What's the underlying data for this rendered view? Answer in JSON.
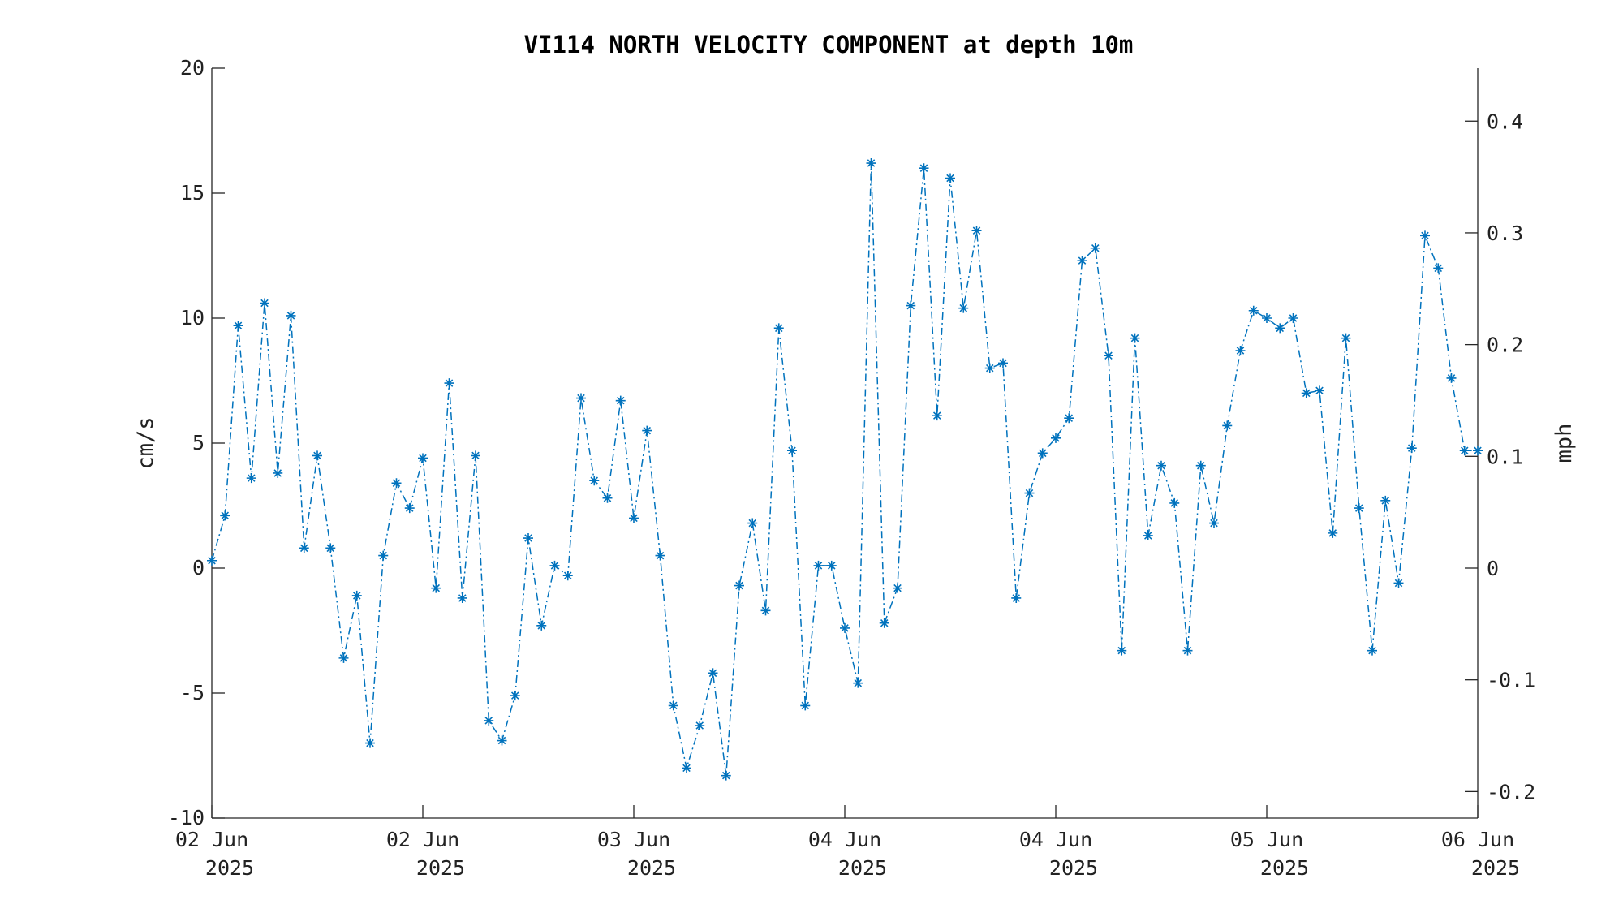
{
  "chart_data": {
    "type": "line",
    "title": "VI114 NORTH VELOCITY COMPONENT at depth 10m",
    "ylabel": "cm/s",
    "y2label": "mph",
    "ylim": [
      -10,
      20
    ],
    "y2lim": [
      -0.2237,
      0.4474
    ],
    "yticks": [
      -10,
      -5,
      0,
      5,
      10,
      15,
      20
    ],
    "y2ticks": [
      -0.2,
      -0.1,
      0,
      0.1,
      0.2,
      0.3,
      0.4
    ],
    "y2ticklabels": [
      "-0.2",
      "-0.1",
      "0",
      "0.1",
      "0.2",
      "0.3",
      "0.4"
    ],
    "xlim": [
      "2025-06-02T00:00",
      "2025-06-06T00:00"
    ],
    "xticks": [
      {
        "t": "2025-06-02T00:00",
        "line1": "02 Jun",
        "line2": "2025"
      },
      {
        "t": "2025-06-02T16:00",
        "line1": "02 Jun",
        "line2": "2025"
      },
      {
        "t": "2025-06-03T08:00",
        "line1": "03 Jun",
        "line2": "2025"
      },
      {
        "t": "2025-06-04T00:00",
        "line1": "04 Jun",
        "line2": "2025"
      },
      {
        "t": "2025-06-04T16:00",
        "line1": "04 Jun",
        "line2": "2025"
      },
      {
        "t": "2025-06-05T08:00",
        "line1": "05 Jun",
        "line2": "2025"
      },
      {
        "t": "2025-06-06T00:00",
        "line1": "06 Jun",
        "line2": "2025"
      }
    ],
    "grid": false,
    "marker": "asterisk",
    "line_style": "dash-dot",
    "color": "#0072BD",
    "series": [
      {
        "x": [
          "2025-06-02T00:00",
          "2025-06-02T01:00",
          "2025-06-02T02:00",
          "2025-06-02T03:00",
          "2025-06-02T04:00",
          "2025-06-02T05:00",
          "2025-06-02T06:00",
          "2025-06-02T07:00",
          "2025-06-02T08:00",
          "2025-06-02T09:00",
          "2025-06-02T10:00",
          "2025-06-02T11:00",
          "2025-06-02T12:00",
          "2025-06-02T13:00",
          "2025-06-02T14:00",
          "2025-06-02T15:00",
          "2025-06-02T16:00",
          "2025-06-02T17:00",
          "2025-06-02T18:00",
          "2025-06-02T19:00",
          "2025-06-02T20:00",
          "2025-06-02T21:00",
          "2025-06-02T22:00",
          "2025-06-02T23:00",
          "2025-06-03T00:00",
          "2025-06-03T01:00",
          "2025-06-03T02:00",
          "2025-06-03T03:00",
          "2025-06-03T04:00",
          "2025-06-03T05:00",
          "2025-06-03T06:00",
          "2025-06-03T07:00",
          "2025-06-03T08:00",
          "2025-06-03T09:00",
          "2025-06-03T10:00",
          "2025-06-03T11:00",
          "2025-06-03T12:00",
          "2025-06-03T13:00",
          "2025-06-03T14:00",
          "2025-06-03T15:00",
          "2025-06-03T16:00",
          "2025-06-03T17:00",
          "2025-06-03T18:00",
          "2025-06-03T19:00",
          "2025-06-03T20:00",
          "2025-06-03T21:00",
          "2025-06-03T22:00",
          "2025-06-03T23:00",
          "2025-06-04T00:00",
          "2025-06-04T01:00",
          "2025-06-04T02:00",
          "2025-06-04T03:00",
          "2025-06-04T04:00",
          "2025-06-04T05:00",
          "2025-06-04T06:00",
          "2025-06-04T07:00",
          "2025-06-04T08:00",
          "2025-06-04T09:00",
          "2025-06-04T10:00",
          "2025-06-04T11:00",
          "2025-06-04T12:00",
          "2025-06-04T13:00",
          "2025-06-04T14:00",
          "2025-06-04T15:00",
          "2025-06-04T16:00",
          "2025-06-04T17:00",
          "2025-06-04T18:00",
          "2025-06-04T19:00",
          "2025-06-04T20:00",
          "2025-06-04T21:00",
          "2025-06-04T22:00",
          "2025-06-04T23:00",
          "2025-06-05T00:00",
          "2025-06-05T01:00",
          "2025-06-05T02:00",
          "2025-06-05T03:00",
          "2025-06-05T04:00",
          "2025-06-05T05:00",
          "2025-06-05T06:00",
          "2025-06-05T07:00",
          "2025-06-05T08:00",
          "2025-06-05T09:00",
          "2025-06-05T10:00",
          "2025-06-05T11:00",
          "2025-06-05T12:00",
          "2025-06-05T13:00",
          "2025-06-05T14:00",
          "2025-06-05T15:00",
          "2025-06-05T16:00",
          "2025-06-05T17:00",
          "2025-06-05T18:00",
          "2025-06-05T19:00",
          "2025-06-05T20:00",
          "2025-06-05T21:00",
          "2025-06-05T22:00",
          "2025-06-05T23:00",
          "2025-06-06T00:00"
        ],
        "values": [
          0.3,
          2.1,
          9.7,
          3.6,
          10.6,
          3.8,
          10.1,
          0.8,
          4.5,
          0.8,
          -3.6,
          -1.1,
          -7.0,
          0.5,
          3.4,
          2.4,
          4.4,
          -0.8,
          7.4,
          -1.2,
          4.5,
          -6.1,
          -6.9,
          -5.1,
          1.2,
          -2.3,
          0.1,
          -0.3,
          6.8,
          3.5,
          2.8,
          6.7,
          2.0,
          5.5,
          0.5,
          -5.5,
          -8.0,
          -6.3,
          -4.2,
          -8.3,
          -0.7,
          1.8,
          -1.7,
          9.6,
          4.7,
          -5.5,
          0.1,
          0.1,
          -2.4,
          -4.6,
          16.2,
          -2.2,
          -0.8,
          10.5,
          16.0,
          6.1,
          15.6,
          10.4,
          13.5,
          8.0,
          8.2,
          -1.2,
          3.0,
          4.6,
          5.2,
          6.0,
          12.3,
          12.8,
          8.5,
          -3.3,
          9.2,
          1.3,
          4.1,
          2.6,
          -3.3,
          4.1,
          1.8,
          5.7,
          8.7,
          10.3,
          10.0,
          9.6,
          10.0,
          7.0,
          7.1,
          1.4,
          9.2,
          2.4,
          -3.3,
          2.7,
          -0.6,
          4.8,
          13.3,
          12.0,
          7.6,
          4.7,
          4.7
        ]
      }
    ]
  }
}
